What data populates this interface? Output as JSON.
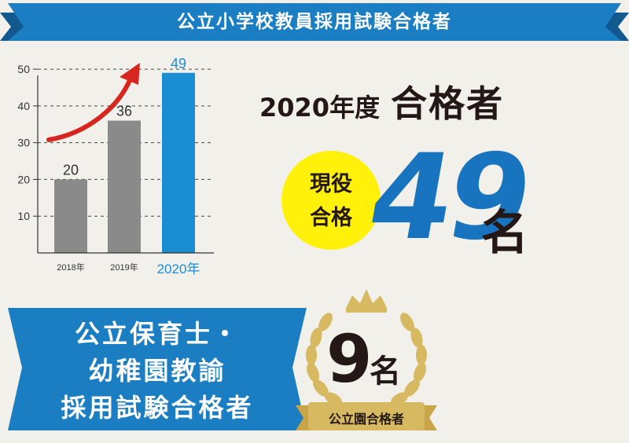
{
  "header": {
    "title": "公立小学校教員採用試験合格者"
  },
  "chart_data": {
    "type": "bar",
    "categories": [
      "2018年",
      "2019年",
      "2020年"
    ],
    "values": [
      20,
      36,
      49
    ],
    "data_labels": [
      "20",
      "36",
      "49"
    ],
    "yticks": [
      10,
      20,
      30,
      40,
      50
    ],
    "ylim": [
      0,
      56
    ],
    "grid": true,
    "highlight_index": 2,
    "colors": {
      "bar": "#8a8a8a",
      "highlight": "#1b8dd2",
      "arrow": "#d7261f"
    }
  },
  "headline": {
    "year": "2020年度",
    "title": "合格者"
  },
  "badge": {
    "line1": "現役",
    "line2": "合格"
  },
  "main_count": {
    "number": "49",
    "unit": "名"
  },
  "nursery_ribbon": {
    "line1": "公立保育士・",
    "line2": "幼稚園教諭",
    "line3": "採用試験合格者"
  },
  "medal": {
    "number": "9",
    "unit": "名",
    "label": "公立園合格者"
  },
  "colors": {
    "ribbon_blue": "#1b7ec2",
    "accent_blue": "#1874be",
    "gold": "#d7b961",
    "yellow": "#fff10a",
    "background": "#f2f0ea"
  }
}
